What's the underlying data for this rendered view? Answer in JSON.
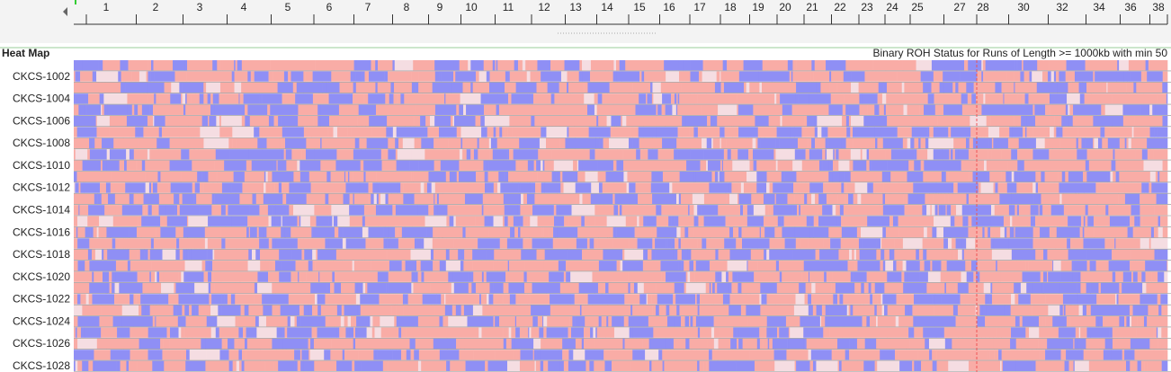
{
  "ruler": {
    "labels": [
      "1",
      "2",
      "3",
      "4",
      "5",
      "6",
      "7",
      "8",
      "9",
      "10",
      "11",
      "12",
      "13",
      "14",
      "15",
      "16",
      "17",
      "18",
      "19",
      "20",
      "21",
      "22",
      "23",
      "24",
      "25",
      "27",
      "28",
      "30",
      "32",
      "34",
      "36",
      "38"
    ]
  },
  "heatmap": {
    "title": "Heat Map",
    "subtitle": "Binary ROH Status for Runs of Length >= 1000kb with min 50",
    "row_labels": [
      "CKCS-1002",
      "CKCS-1004",
      "CKCS-1006",
      "CKCS-1008",
      "CKCS-1010",
      "CKCS-1012",
      "CKCS-1014",
      "CKCS-1016",
      "CKCS-1018",
      "CKCS-1020",
      "CKCS-1022",
      "CKCS-1024",
      "CKCS-1026",
      "CKCS-1028"
    ]
  }
}
